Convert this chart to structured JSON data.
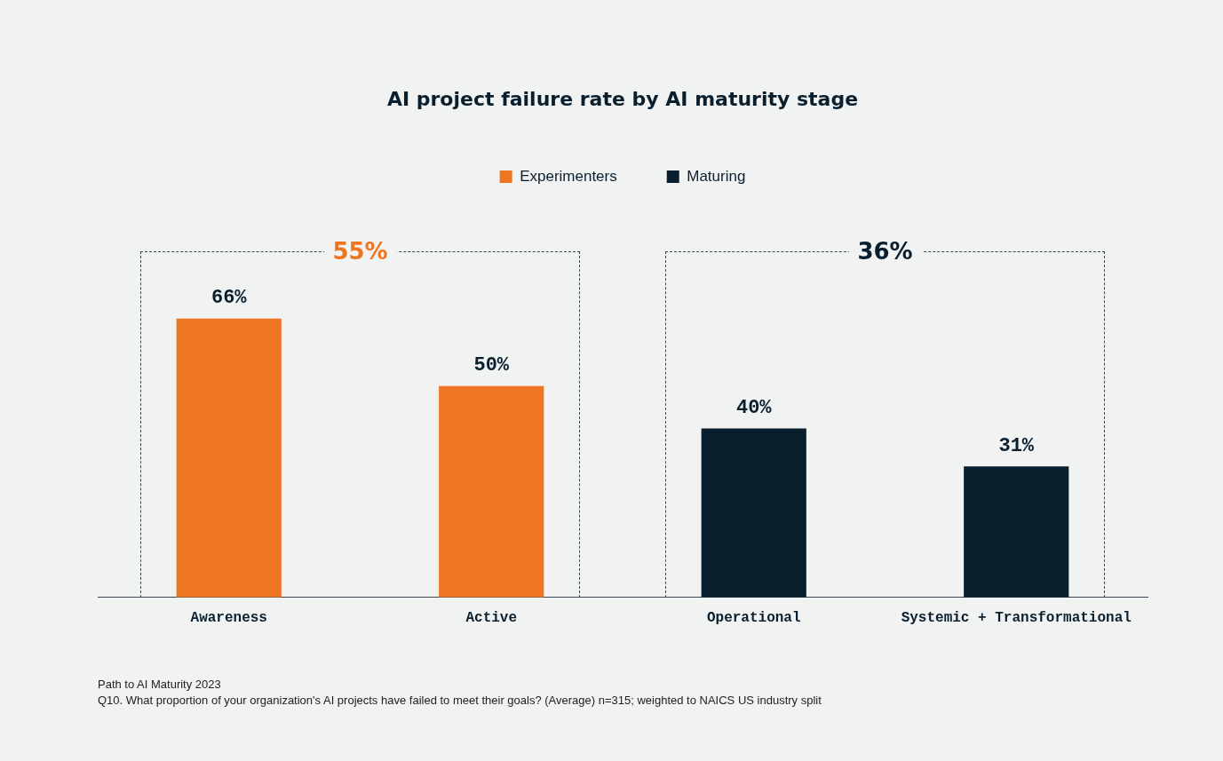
{
  "chart_data": {
    "type": "bar",
    "title": "AI project failure rate by AI maturity stage",
    "categories": [
      "Awareness",
      "Active",
      "Operational",
      "Systemic + Transformational"
    ],
    "series": [
      {
        "name": "Experimenters",
        "color": "#ee7623",
        "values": [
          66,
          50,
          null,
          null
        ],
        "value_labels": [
          "66%",
          "50%",
          null,
          null
        ]
      },
      {
        "name": "Maturing",
        "color": "#0a1f2e",
        "values": [
          null,
          null,
          40,
          31
        ],
        "value_labels": [
          null,
          null,
          "40%",
          "31%"
        ]
      }
    ],
    "legend": "top",
    "grid": false,
    "annotations": [
      "55%",
      "36%",
      "Path to AI Maturity 2023",
      "Q10. What proportion of your organization's AI projects have failed to meet their goals? (Average) n=315; weighted to NAICS US industry split"
    ]
  }
}
